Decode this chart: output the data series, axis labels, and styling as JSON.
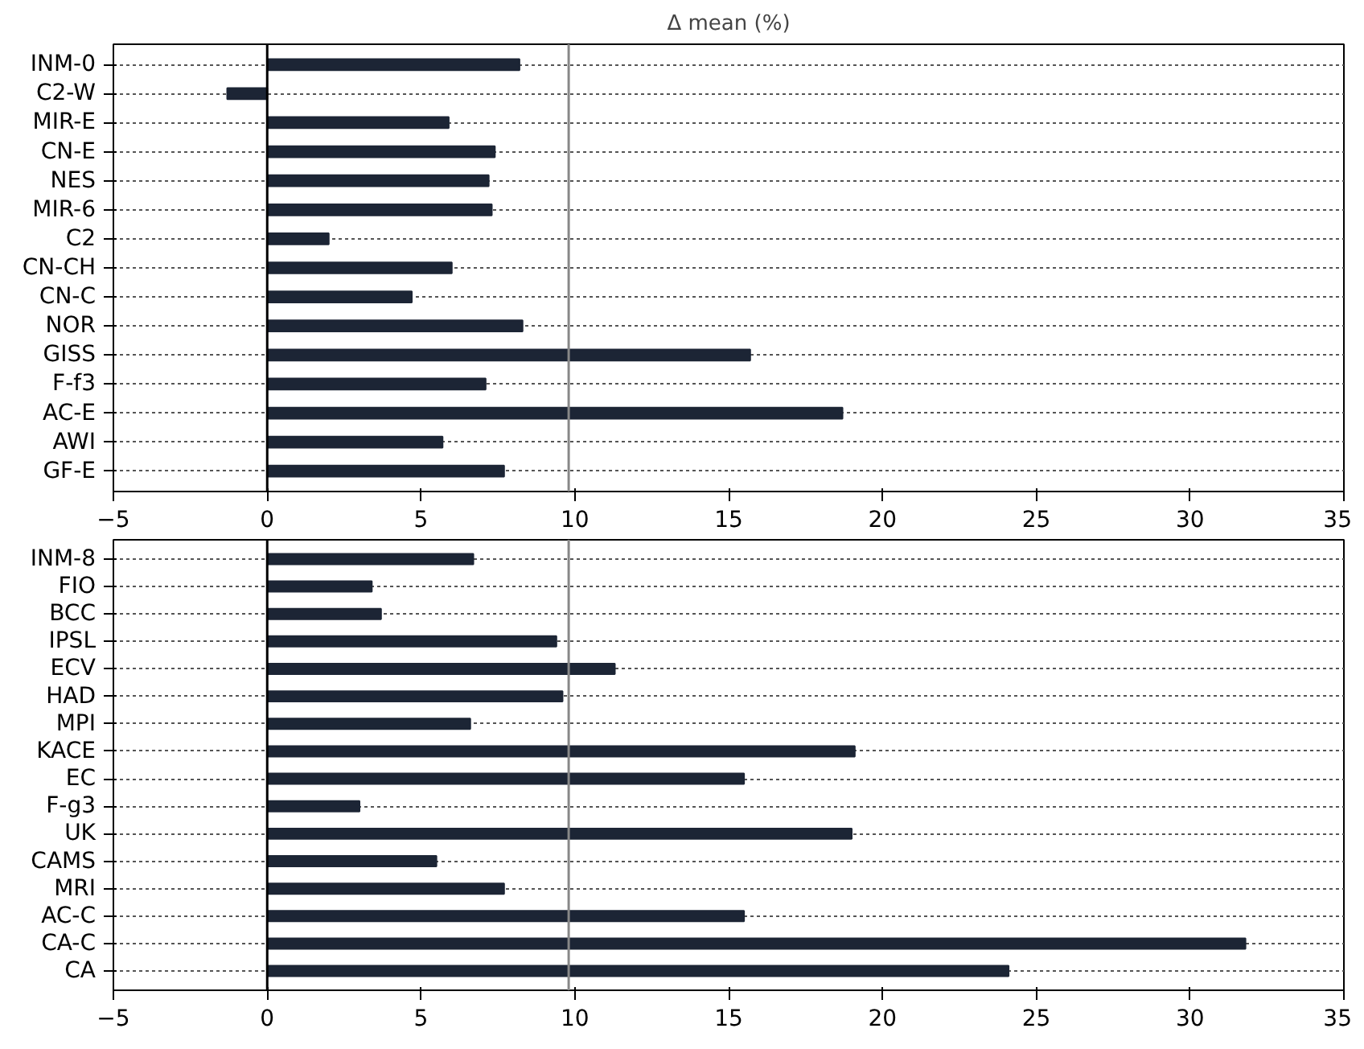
{
  "chart_data": [
    {
      "type": "bar",
      "orientation": "horizontal",
      "title": "Δ mean (%)",
      "categories": [
        "INM-0",
        "C2-W",
        "MIR-E",
        "CN-E",
        "NES",
        "MIR-6",
        "C2",
        "CN-CH",
        "CN-C",
        "NOR",
        "GISS",
        "F-f3",
        "AC-E",
        "AWI",
        "GF-E"
      ],
      "values": [
        8.2,
        -1.3,
        5.9,
        7.4,
        7.2,
        7.3,
        2.0,
        6.0,
        4.7,
        8.3,
        15.7,
        7.1,
        18.7,
        5.7,
        7.7
      ],
      "color": "#1c2535",
      "xlim": [
        -5,
        35
      ],
      "xticks": [
        -5,
        0,
        5,
        10,
        15,
        20,
        25,
        30,
        35
      ],
      "grid": "y",
      "ref_lines": [
        {
          "axis": "x",
          "value": 0,
          "color": "#000000"
        },
        {
          "axis": "x",
          "value": 9.8,
          "color": "#888888"
        }
      ]
    },
    {
      "type": "bar",
      "orientation": "horizontal",
      "categories": [
        "INM-8",
        "FIO",
        "BCC",
        "IPSL",
        "ECV",
        "HAD",
        "MPI",
        "KACE",
        "EC",
        "F-g3",
        "UK",
        "CAMS",
        "MRI",
        "AC-C",
        "CA-C",
        "CA"
      ],
      "values": [
        6.7,
        3.4,
        3.7,
        9.4,
        11.3,
        9.6,
        6.6,
        19.1,
        15.5,
        3.0,
        19.0,
        5.5,
        7.7,
        15.5,
        31.8,
        24.1
      ],
      "color": "#1c2535",
      "xlim": [
        -5,
        35
      ],
      "xticks": [
        -5,
        0,
        5,
        10,
        15,
        20,
        25,
        30,
        35
      ],
      "grid": "y",
      "ref_lines": [
        {
          "axis": "x",
          "value": 0,
          "color": "#000000"
        },
        {
          "axis": "x",
          "value": 9.8,
          "color": "#888888"
        }
      ]
    }
  ]
}
